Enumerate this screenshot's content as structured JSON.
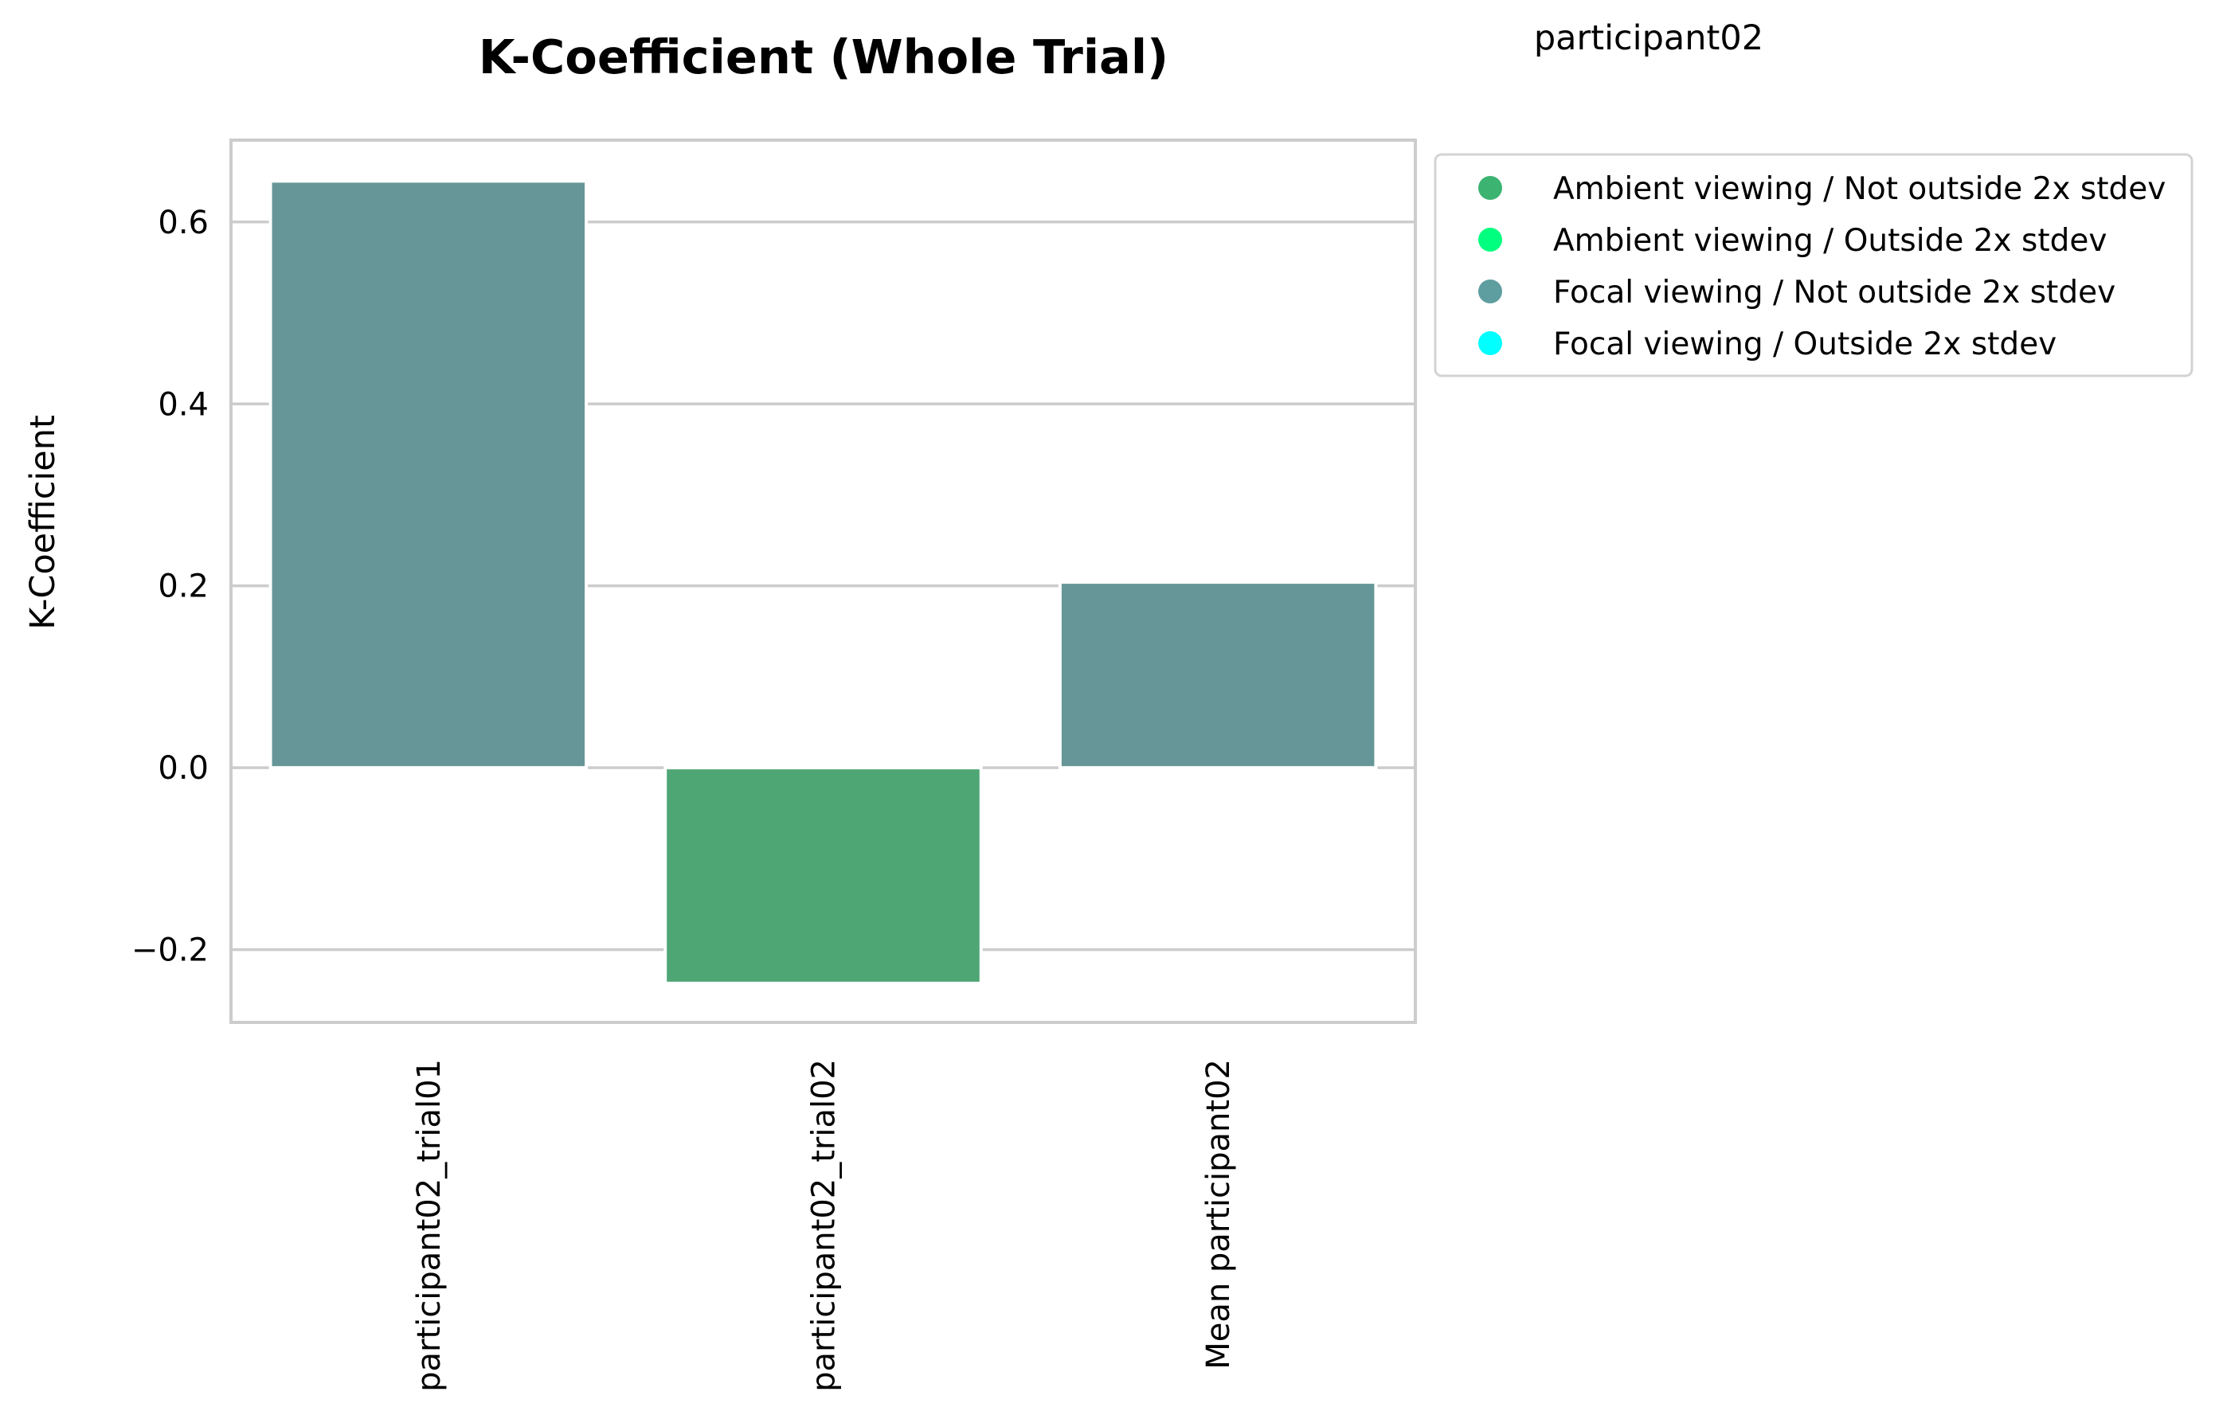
{
  "chart_data": {
    "type": "bar",
    "title": "K-Coefficient (Whole Trial)",
    "suptitle": "participant02",
    "xlabel": "",
    "ylabel": "K-Coefficient",
    "ylim": [
      -0.28,
      0.69
    ],
    "yticks": [
      -0.2,
      0.0,
      0.2,
      0.4,
      0.6
    ],
    "ytick_labels": [
      "−0.2",
      "0.0",
      "0.2",
      "0.4",
      "0.6"
    ],
    "categories": [
      "participant02_trial01",
      "participant02_trial02",
      "Mean participant02"
    ],
    "values": [
      0.645,
      -0.237,
      0.204
    ],
    "bar_classes": [
      "Focal viewing / Not outside 2x stdev",
      "Ambient viewing / Not outside 2x stdev",
      "Focal viewing / Not outside 2x stdev"
    ],
    "grid": true,
    "legend_position": "outside upper right",
    "legend": [
      {
        "label": "Ambient viewing / Not outside 2x stdev",
        "color": "#3cb371"
      },
      {
        "label": "Ambient viewing / Outside 2x stdev",
        "color": "#00ff7f"
      },
      {
        "label": "Focal viewing / Not outside 2x stdev",
        "color": "#5f9ea0"
      },
      {
        "label": "Focal viewing / Outside 2x stdev",
        "color": "#00ffff"
      }
    ],
    "bar_colors": {
      "Ambient viewing / Not outside 2x stdev": "#4ea674",
      "Ambient viewing / Outside 2x stdev": "#00ff7f",
      "Focal viewing / Not outside 2x stdev": "#669697",
      "Focal viewing / Outside 2x stdev": "#00ffff"
    }
  }
}
